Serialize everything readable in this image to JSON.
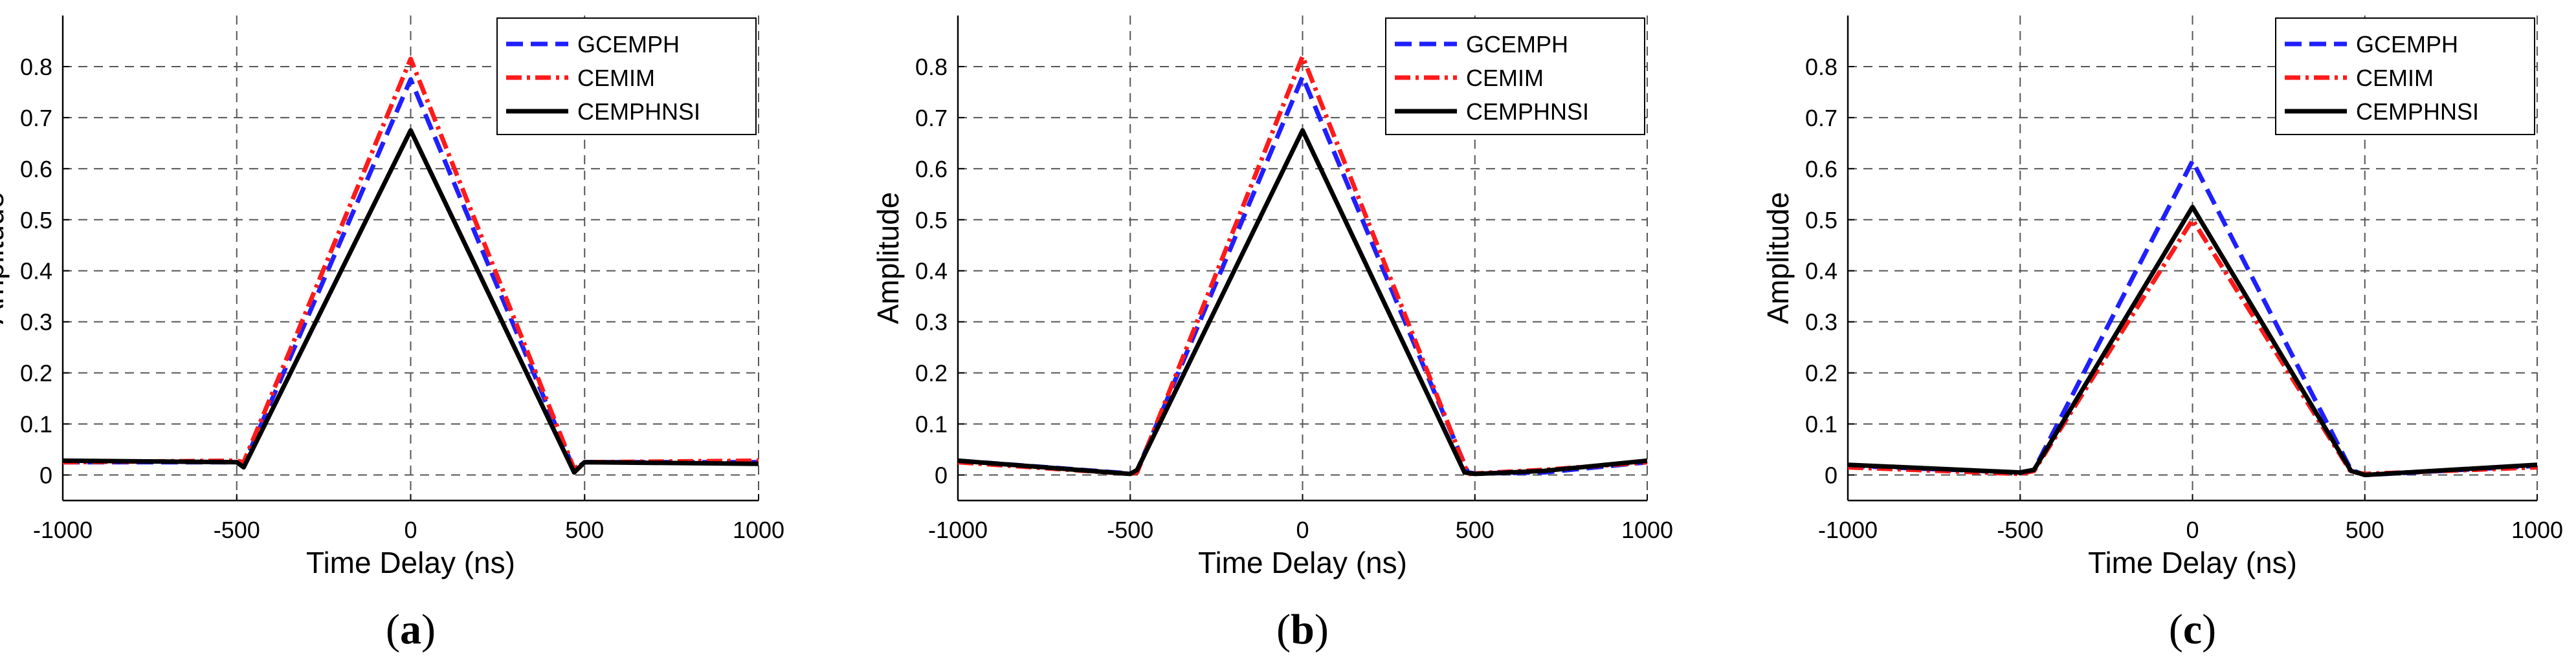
{
  "figure_id": "time-delay-amplitude-comparison",
  "series_styles": [
    {
      "name": "GCEMPH",
      "color": "#1f1fff",
      "dash": "26 12"
    },
    {
      "name": "CEMIM",
      "color": "#ff1a1a",
      "dash": "24 8 5 8"
    },
    {
      "name": "CEMPHNSI",
      "color": "#000000",
      "dash": ""
    }
  ],
  "chart_data": [
    {
      "type": "line",
      "panel": "a",
      "caption": {
        "open": "(",
        "letter": "a",
        "close": ")"
      },
      "xlabel": "Time Delay (ns)",
      "ylabel": "Amplitude",
      "xlim": [
        -1000,
        1000
      ],
      "ylim": [
        -0.05,
        0.9
      ],
      "xticks": [
        -1000,
        -500,
        0,
        500,
        1000
      ],
      "yticks": [
        0,
        0.1,
        0.2,
        0.3,
        0.4,
        0.5,
        0.6,
        0.7,
        0.8
      ],
      "grid": true,
      "legend_position": "top-right",
      "series": [
        {
          "name": "GCEMPH",
          "x": [
            -1000,
            -500,
            -480,
            0,
            470,
            500,
            1000
          ],
          "y": [
            0.025,
            0.025,
            0.02,
            0.775,
            0.01,
            0.025,
            0.025
          ]
        },
        {
          "name": "CEMIM",
          "x": [
            -1000,
            -500,
            -480,
            0,
            470,
            500,
            1000
          ],
          "y": [
            0.025,
            0.028,
            0.025,
            0.815,
            0.012,
            0.025,
            0.028
          ]
        },
        {
          "name": "CEMPHNSI",
          "x": [
            -1000,
            -500,
            -480,
            0,
            470,
            500,
            1000
          ],
          "y": [
            0.028,
            0.025,
            0.015,
            0.675,
            0.005,
            0.025,
            0.022
          ]
        }
      ]
    },
    {
      "type": "line",
      "panel": "b",
      "caption": {
        "open": "(",
        "letter": "b",
        "close": ")"
      },
      "xlabel": "Time Delay (ns)",
      "ylabel": "Amplitude",
      "xlim": [
        -1000,
        1000
      ],
      "ylim": [
        -0.05,
        0.9
      ],
      "xticks": [
        -1000,
        -500,
        0,
        500,
        1000
      ],
      "yticks": [
        0,
        0.1,
        0.2,
        0.3,
        0.4,
        0.5,
        0.6,
        0.7,
        0.8
      ],
      "grid": true,
      "legend_position": "top-right",
      "series": [
        {
          "name": "GCEMPH",
          "x": [
            -1000,
            -500,
            -480,
            0,
            480,
            500,
            700,
            1000
          ],
          "y": [
            0.028,
            0.003,
            0.008,
            0.78,
            0.005,
            0.003,
            0.005,
            0.025
          ]
        },
        {
          "name": "CEMIM",
          "x": [
            -1000,
            -500,
            -480,
            0,
            480,
            500,
            700,
            1000
          ],
          "y": [
            0.025,
            0.002,
            0.005,
            0.82,
            0.002,
            0.003,
            0.01,
            0.025
          ]
        },
        {
          "name": "CEMPHNSI",
          "x": [
            -1000,
            -500,
            -480,
            0,
            470,
            500,
            700,
            1000
          ],
          "y": [
            0.028,
            0.002,
            0.01,
            0.675,
            0.005,
            0.002,
            0.008,
            0.028
          ]
        }
      ]
    },
    {
      "type": "line",
      "panel": "c",
      "caption": {
        "open": "(",
        "letter": "c",
        "close": ")"
      },
      "xlabel": "Time Delay (ns)",
      "ylabel": "Amplitude",
      "xlim": [
        -1000,
        1000
      ],
      "ylim": [
        -0.05,
        0.9
      ],
      "xticks": [
        -1000,
        -500,
        0,
        500,
        1000
      ],
      "yticks": [
        0,
        0.1,
        0.2,
        0.3,
        0.4,
        0.5,
        0.6,
        0.7,
        0.8
      ],
      "grid": true,
      "legend_position": "top-right",
      "series": [
        {
          "name": "GCEMPH",
          "x": [
            -1000,
            -500,
            -460,
            0,
            460,
            500,
            1000
          ],
          "y": [
            0.018,
            0.005,
            0.01,
            0.615,
            0.01,
            0.0,
            0.018
          ]
        },
        {
          "name": "CEMIM",
          "x": [
            -1000,
            -500,
            -460,
            0,
            460,
            500,
            1000
          ],
          "y": [
            0.015,
            0.002,
            0.008,
            0.5,
            0.006,
            0.002,
            0.015
          ]
        },
        {
          "name": "CEMPHNSI",
          "x": [
            -1000,
            -500,
            -460,
            0,
            460,
            500,
            1000
          ],
          "y": [
            0.02,
            0.005,
            0.01,
            0.525,
            0.008,
            0.0,
            0.02
          ]
        }
      ]
    }
  ]
}
